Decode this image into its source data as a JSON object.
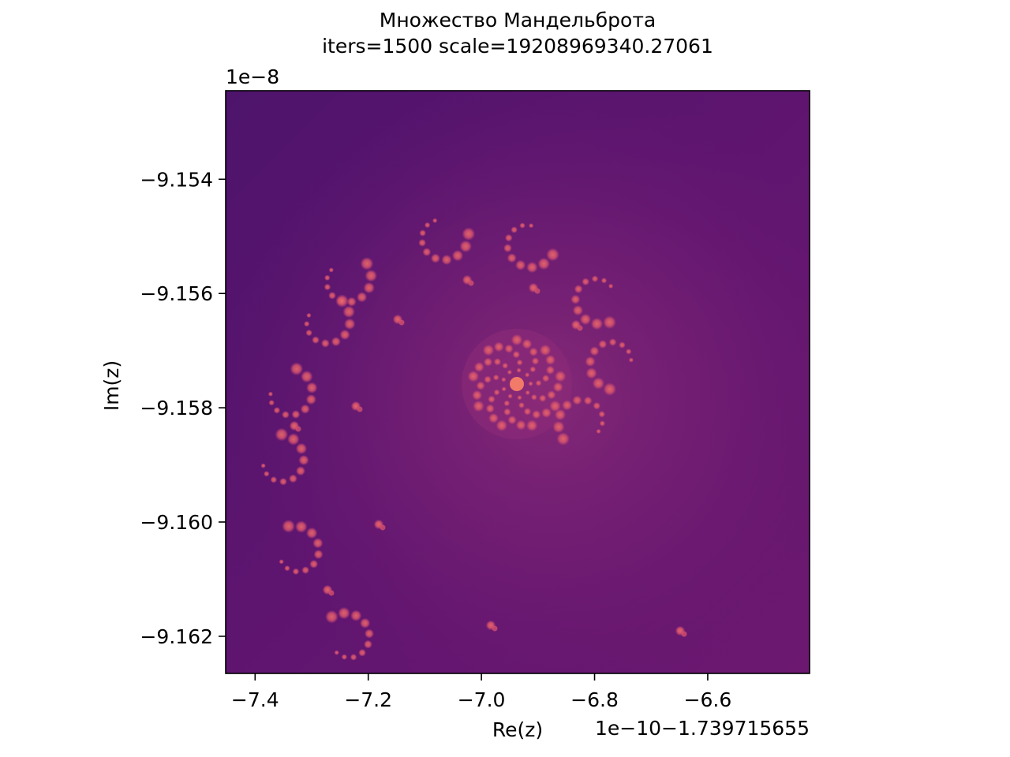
{
  "chart_data": {
    "type": "heatmap",
    "title": "Множество Мандельброта",
    "subtitle": "iters=1500 scale=19208969340.27061",
    "xlabel": "Re(z)",
    "ylabel": "Im(z)",
    "x_offset_text": "1e−10−1.739715655",
    "y_offset_text": "1e−8",
    "xlim": [
      -7.452,
      -6.42
    ],
    "ylim": [
      -9.16265,
      -9.15245
    ],
    "x_ticks": [
      {
        "value": -7.4,
        "label": "−7.4"
      },
      {
        "value": -7.2,
        "label": "−7.2"
      },
      {
        "value": -7.0,
        "label": "−7.0"
      },
      {
        "value": -6.8,
        "label": "−6.8"
      },
      {
        "value": -6.6,
        "label": "−6.6"
      }
    ],
    "y_ticks": [
      {
        "value": -9.154,
        "label": "−9.154"
      },
      {
        "value": -9.156,
        "label": "−9.156"
      },
      {
        "value": -9.158,
        "label": "−9.158"
      },
      {
        "value": -9.16,
        "label": "−9.160"
      },
      {
        "value": -9.162,
        "label": "−9.162"
      }
    ],
    "colormap": "magma",
    "colors": {
      "background_dark": "#45156a",
      "background_mid": "#6a1870",
      "glow": "#8a2a78",
      "feature": "#d2506e",
      "feature_bright": "#ee6a6a"
    },
    "grid": false,
    "legend": "none"
  }
}
